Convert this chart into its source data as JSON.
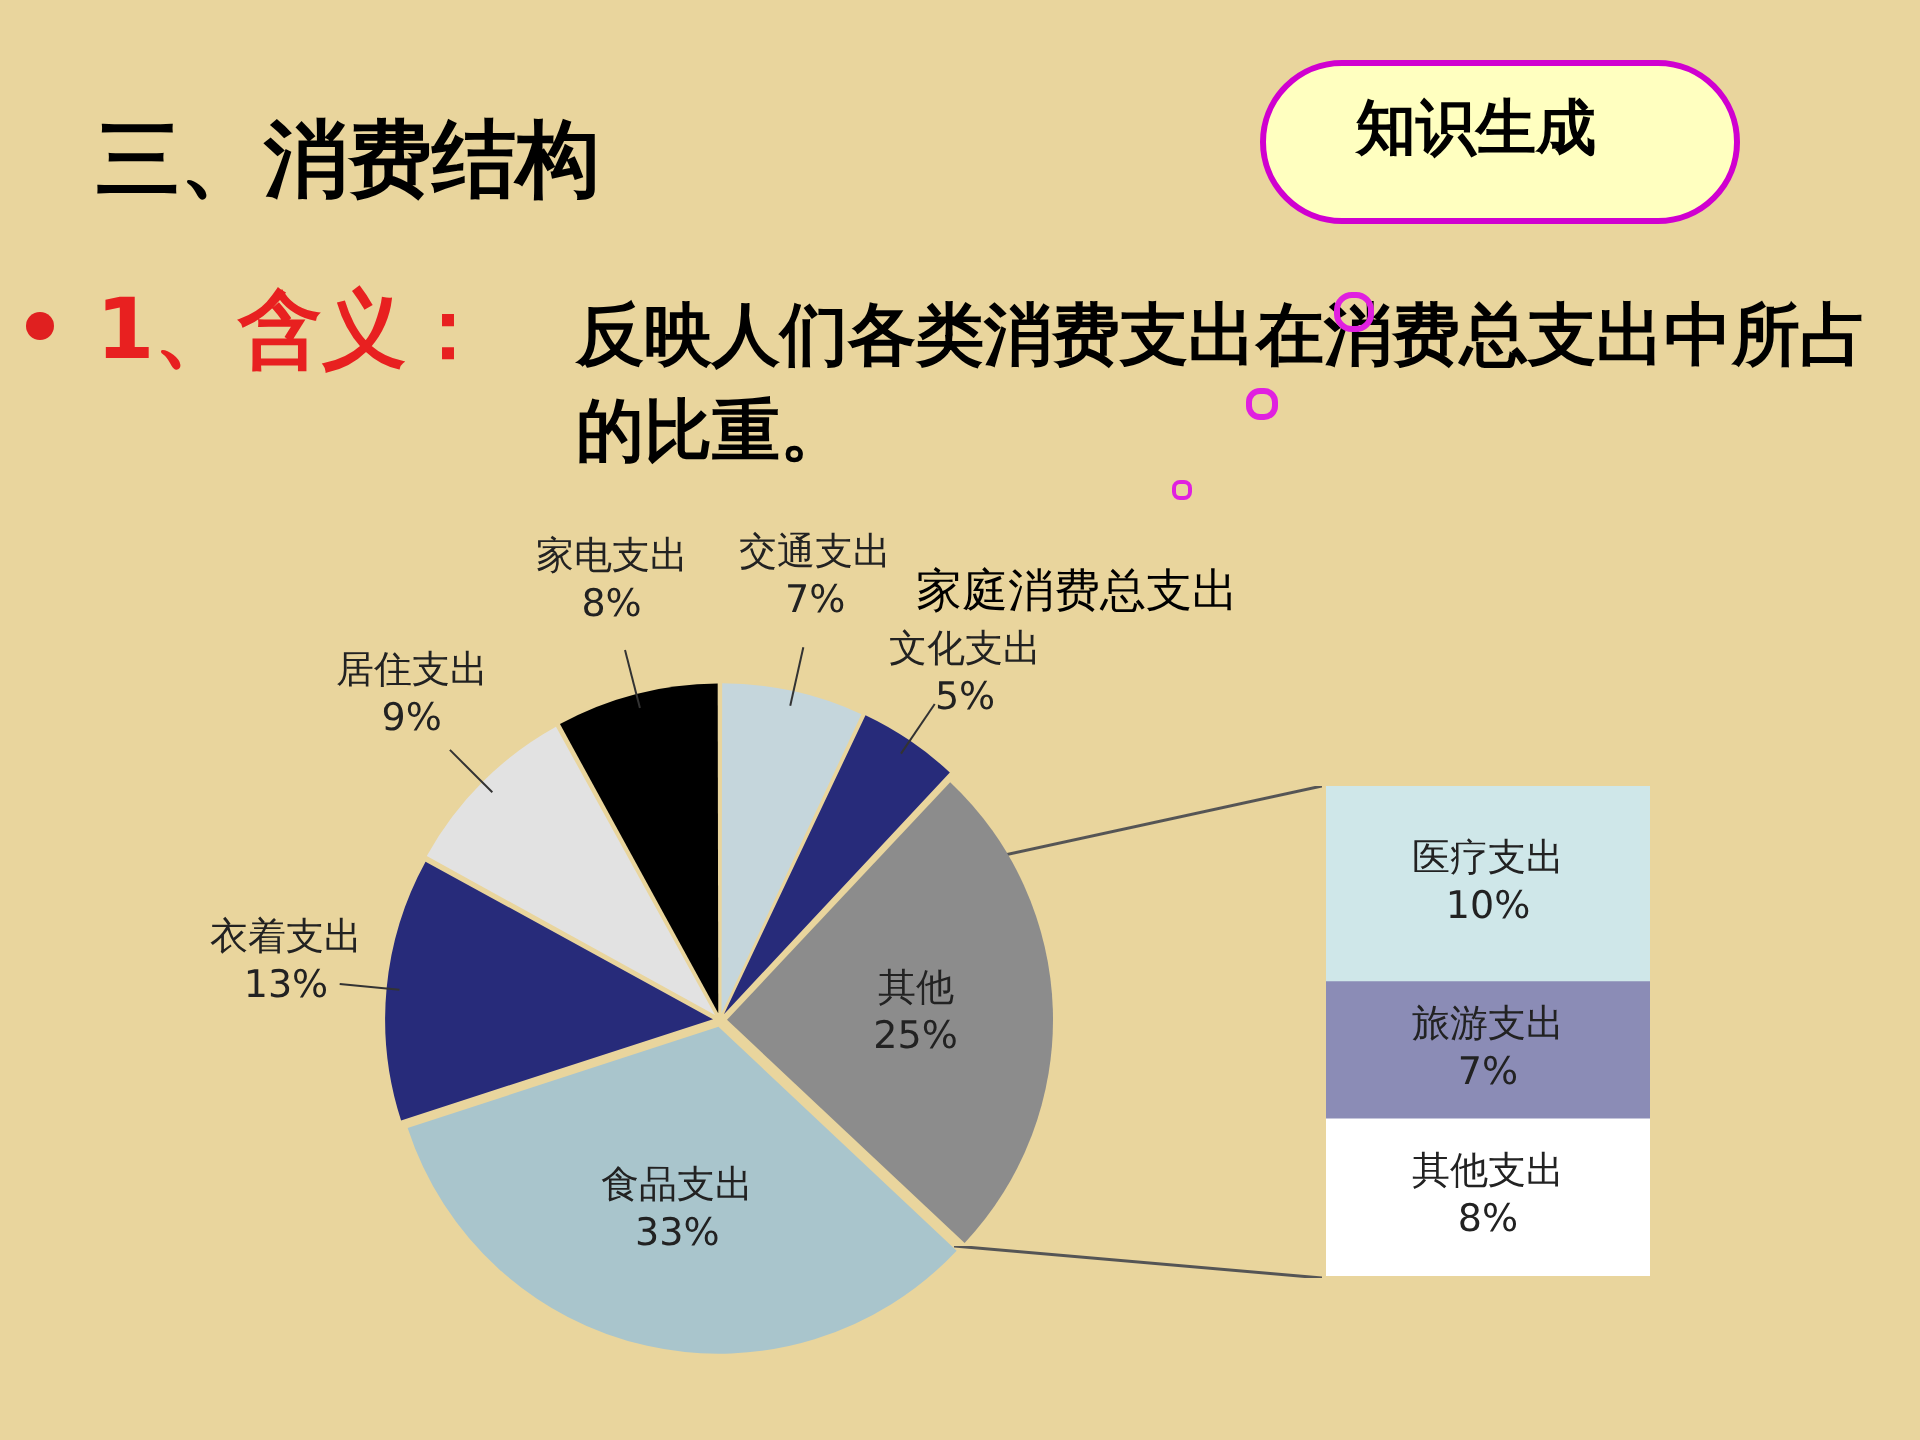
{
  "chart_data": [
    {
      "type": "pie",
      "title": "家庭消费总支出",
      "annotations": [
        "三、消费结构",
        "知识生成",
        "1、含义：",
        "反映人们各类消费支出在消费总支出中所占的比重。"
      ],
      "categories": [
        "交通支出",
        "文化支出",
        "其他",
        "食品支出",
        "衣着支出",
        "居住支出",
        "家电支出"
      ],
      "values": [
        7,
        5,
        25,
        33,
        13,
        9,
        8
      ],
      "value_labels": [
        "7%",
        "5%",
        "25%",
        "33%",
        "13%",
        "9%",
        "8%"
      ],
      "colors": [
        "#c5d6dc",
        "#272b7a",
        "#8c8c8c",
        "#a9c5cc",
        "#272b7a",
        "#e2e2e2",
        "#000000"
      ],
      "legend": false
    },
    {
      "type": "bar",
      "stacked": true,
      "categories": [
        null
      ],
      "legend": false,
      "series": [
        {
          "name": "其他支出",
          "color": "#ffffff",
          "values": [
            8
          ],
          "value_labels": [
            "8%"
          ]
        },
        {
          "name": "旅游支出",
          "color": "#8b8cb6",
          "values": [
            7
          ],
          "value_labels": [
            "7%"
          ]
        },
        {
          "name": "医疗支出",
          "color": "#cfe7e9",
          "values": [
            10
          ],
          "value_labels": [
            "10%"
          ]
        }
      ]
    }
  ]
}
